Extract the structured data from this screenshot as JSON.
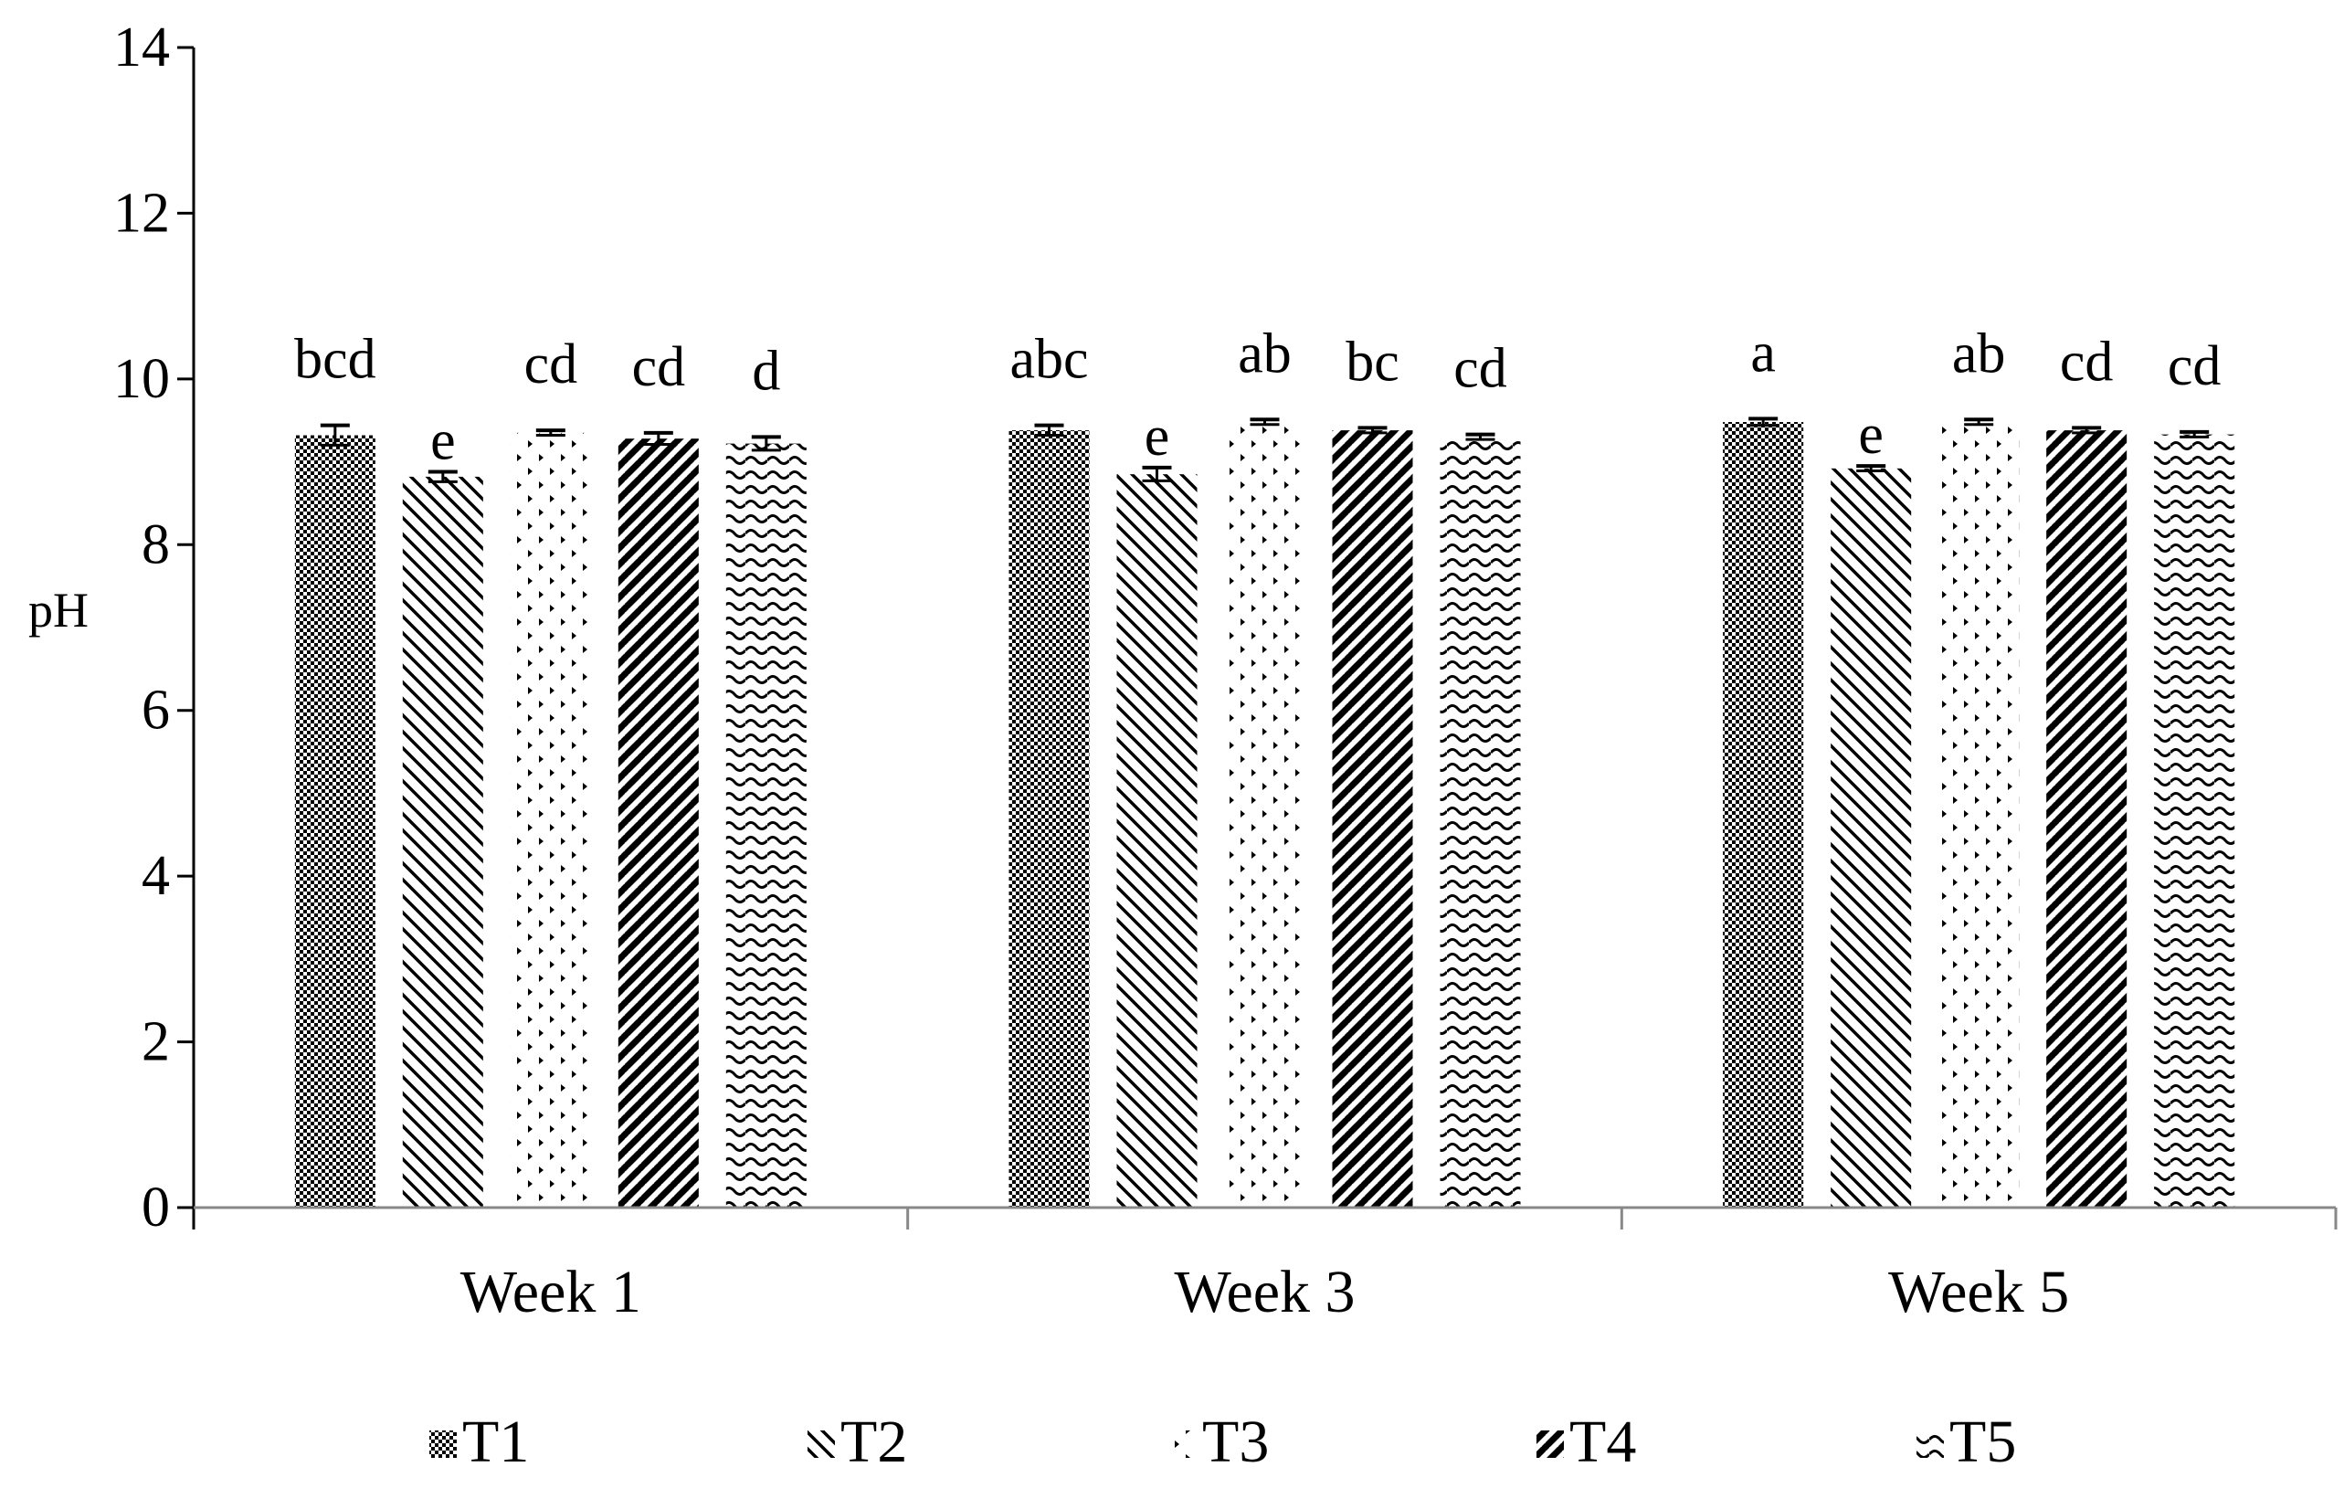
{
  "chart_data": {
    "type": "bar",
    "title": "",
    "xlabel": "",
    "ylabel": "pH",
    "ylim": [
      0,
      14
    ],
    "yticks": [
      0,
      2,
      4,
      6,
      8,
      10,
      12,
      14
    ],
    "grid": false,
    "legend_position": "bottom",
    "categories": [
      "Week 1",
      "Week 3",
      "Week 5"
    ],
    "series": [
      {
        "name": "T1",
        "pattern": "checker",
        "values": [
          9.32,
          9.38,
          9.48
        ],
        "errors": [
          0.12,
          0.06,
          0.04
        ],
        "labels": [
          "bcd",
          "abc",
          "a"
        ]
      },
      {
        "name": "T2",
        "pattern": "diag-back",
        "values": [
          8.82,
          8.85,
          8.92
        ],
        "errors": [
          0.06,
          0.08,
          0.03
        ],
        "labels": [
          "e",
          "e",
          "e"
        ]
      },
      {
        "name": "T3",
        "pattern": "dots",
        "values": [
          9.35,
          9.48,
          9.48
        ],
        "errors": [
          0.03,
          0.03,
          0.03
        ],
        "labels": [
          "cd",
          "ab",
          "ab"
        ]
      },
      {
        "name": "T4",
        "pattern": "diag-fwd-wide",
        "values": [
          9.28,
          9.38,
          9.38
        ],
        "errors": [
          0.07,
          0.03,
          0.03
        ],
        "labels": [
          "cd",
          "bc",
          "cd"
        ]
      },
      {
        "name": "T5",
        "pattern": "waves",
        "values": [
          9.22,
          9.3,
          9.33
        ],
        "errors": [
          0.08,
          0.03,
          0.03
        ],
        "labels": [
          "d",
          "cd",
          "cd"
        ]
      }
    ]
  }
}
